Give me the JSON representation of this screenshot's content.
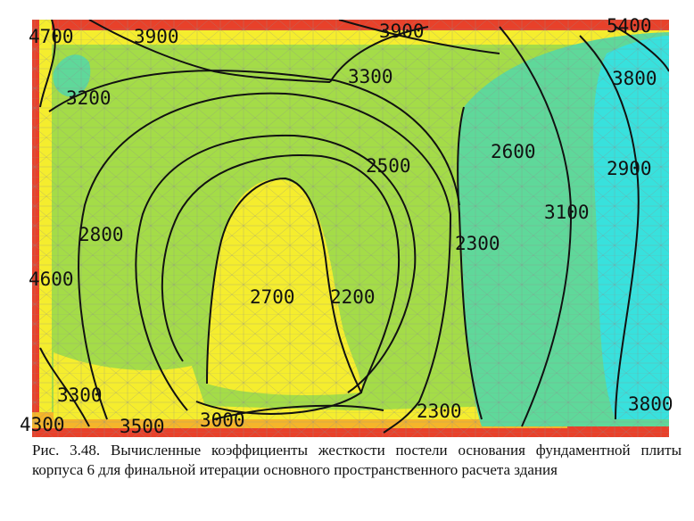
{
  "figure": {
    "contour_labels": [
      "4700",
      "3900",
      "3900",
      "5400",
      "3200",
      "3300",
      "3800",
      "2600",
      "2500",
      "2900",
      "3100",
      "2800",
      "2300",
      "4600",
      "2700",
      "2200",
      "3300",
      "2300",
      "3800",
      "4300",
      "3500",
      "3000"
    ],
    "colors": {
      "green": "#a4dc48",
      "yellow": "#f5ed2e",
      "cyan": "#38e1dd",
      "teal": "#5fd89a",
      "orange": "#f5b52a",
      "red": "#e8412a",
      "contour": "#111111",
      "mesh": "#8e8e8e"
    }
  },
  "caption": "Рис. 3.48. Вычисленные коэффициенты жесткости постели основания фундаментной плиты корпуса 6 для финальной итерации основного пространственного расчета здания"
}
